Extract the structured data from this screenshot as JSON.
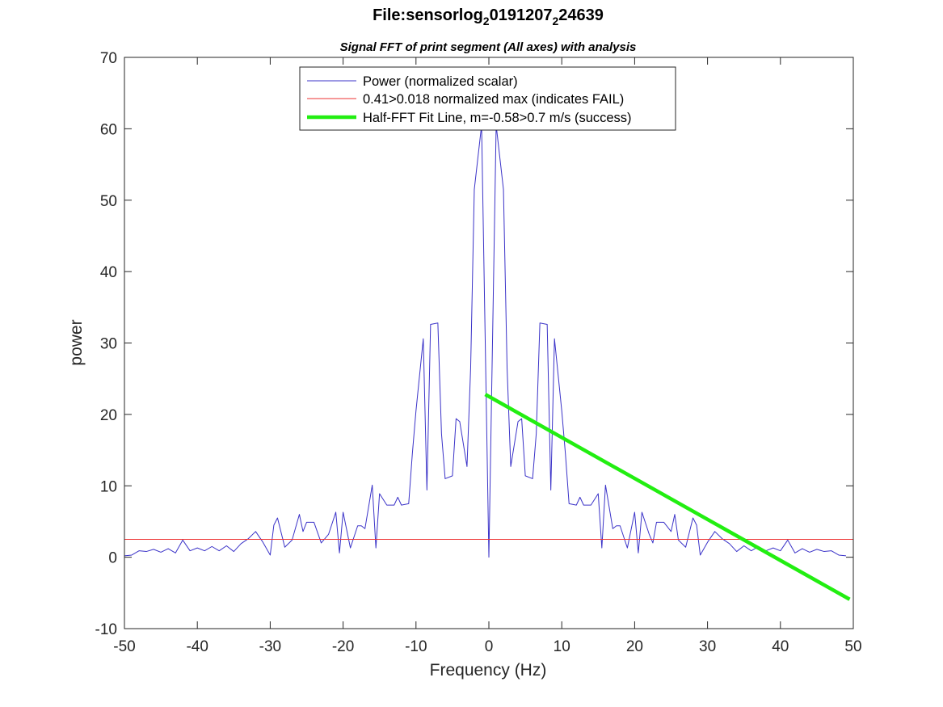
{
  "chart_data": {
    "type": "line",
    "title": {
      "part1": "File:sensorlog",
      "sub1": "2",
      "part2": "0191207",
      "sub2": "2",
      "part3": "24639"
    },
    "subtitle": "Signal FFT of print segment (All axes) with analysis",
    "xlabel": "Frequency (Hz)",
    "ylabel": "power",
    "xlim": [
      -50,
      50
    ],
    "ylim": [
      -10,
      70
    ],
    "xticks": [
      -50,
      -40,
      -30,
      -20,
      -10,
      0,
      10,
      20,
      30,
      40,
      50
    ],
    "yticks": [
      -10,
      0,
      10,
      20,
      30,
      40,
      50,
      60,
      70
    ],
    "grid": false,
    "legend_position": "top",
    "series": [
      {
        "name": "Power (normalized scalar)",
        "color": "#3b33c8",
        "width": 1,
        "x": [
          -50,
          -49,
          -48,
          -47,
          -46,
          -45,
          -44,
          -43,
          -42,
          -41,
          -40,
          -39,
          -38,
          -37,
          -36,
          -35,
          -34,
          -33,
          -32,
          -31,
          -30,
          -29.5,
          -29,
          -28,
          -27,
          -26,
          -25.5,
          -25,
          -24,
          -23,
          -22,
          -21,
          -20.5,
          -20,
          -19,
          -18,
          -17.5,
          -17,
          -16,
          -15.5,
          -15,
          -14,
          -13,
          -12.5,
          -12,
          -11,
          -10.5,
          -10,
          -9,
          -8.5,
          -8,
          -7,
          -6.5,
          -6,
          -5,
          -4.5,
          -4,
          -3,
          -2.5,
          -2,
          -1,
          0,
          1,
          2,
          2.5,
          3,
          4,
          4.5,
          5,
          6,
          6.5,
          7,
          8,
          8.5,
          9,
          10,
          10.5,
          11,
          12,
          12.5,
          13,
          14,
          15,
          15.5,
          16,
          17,
          17.5,
          18,
          19,
          20,
          20.5,
          21,
          22,
          22.5,
          23,
          24,
          25,
          25.5,
          26,
          27,
          28,
          28.5,
          29,
          30,
          31,
          32,
          33,
          34,
          35,
          36,
          37,
          38,
          39,
          40,
          41,
          42,
          43,
          44,
          45,
          46,
          47,
          48,
          49
        ],
        "y": [
          0.2,
          0.3,
          0.9,
          0.8,
          1.1,
          0.7,
          1.2,
          0.6,
          2.4,
          0.9,
          1.3,
          0.9,
          1.5,
          0.9,
          1.6,
          0.8,
          1.9,
          2.6,
          3.6,
          2.1,
          0.3,
          4.5,
          5.5,
          1.4,
          2.4,
          6.0,
          3.6,
          4.9,
          4.9,
          2.0,
          3.2,
          6.3,
          0.6,
          6.3,
          1.3,
          4.4,
          4.4,
          4.0,
          10.1,
          1.3,
          8.9,
          7.3,
          7.3,
          8.4,
          7.3,
          7.5,
          14.5,
          20.5,
          30.6,
          9.4,
          32.6,
          32.8,
          17.3,
          11.0,
          11.4,
          19.4,
          19.0,
          12.7,
          26.5,
          51.5,
          60.5,
          0,
          60.5,
          51.5,
          26.5,
          12.7,
          19.0,
          19.4,
          11.4,
          11.0,
          17.3,
          32.8,
          32.6,
          9.4,
          30.6,
          20.5,
          14.5,
          7.5,
          7.3,
          8.4,
          7.3,
          7.3,
          8.9,
          1.3,
          10.1,
          4.0,
          4.4,
          4.4,
          1.3,
          6.3,
          0.6,
          6.3,
          3.2,
          2.0,
          4.9,
          4.9,
          3.6,
          6.0,
          2.4,
          1.4,
          5.5,
          4.5,
          0.3,
          2.1,
          3.6,
          2.6,
          1.9,
          0.8,
          1.6,
          0.9,
          1.5,
          0.9,
          1.3,
          0.9,
          2.4,
          0.6,
          1.2,
          0.7,
          1.1,
          0.8,
          0.9,
          0.3,
          0.2
        ]
      },
      {
        "name": "0.41>0.018 normalized max (indicates FAIL)",
        "color": "#ee3333",
        "width": 1,
        "x": [
          -50,
          50
        ],
        "y": [
          2.5,
          2.5
        ]
      },
      {
        "name": "Half-FFT Fit Line, m=-0.58>0.7 m/s (success)",
        "color": "#22ee11",
        "width": 4.5,
        "x": [
          -0.5,
          49.5
        ],
        "y": [
          22.8,
          -5.9
        ]
      }
    ]
  }
}
